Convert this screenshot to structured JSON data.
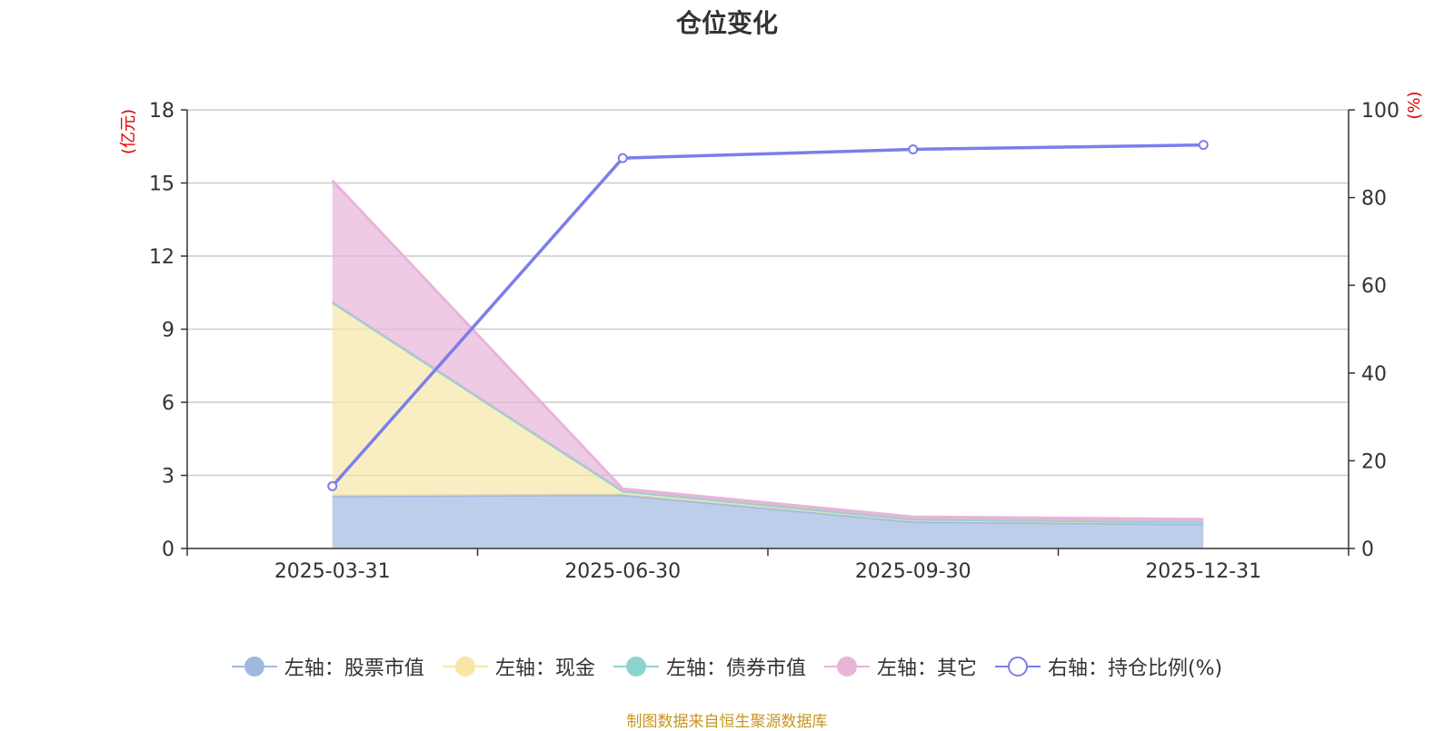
{
  "chart_data": {
    "type": "area",
    "title": "仓位变化",
    "categories": [
      "2025-03-31",
      "2025-06-30",
      "2025-09-30",
      "2025-12-31"
    ],
    "left_axis": {
      "unit_label": "(亿元)",
      "ticks": [
        "0",
        "3",
        "6",
        "9",
        "12",
        "15",
        "18"
      ],
      "ylim": [
        0,
        18
      ]
    },
    "right_axis": {
      "unit_label": "(%)",
      "ticks": [
        "0",
        "20",
        "40",
        "60",
        "80",
        "100"
      ],
      "ylim": [
        0,
        100
      ]
    },
    "stacked_series": [
      {
        "name": "左轴：股票市值",
        "values": [
          2.15,
          2.2,
          1.1,
          1.0
        ],
        "color": "#9fb9e0"
      },
      {
        "name": "左轴：现金",
        "values": [
          7.95,
          0.15,
          0.1,
          0.08
        ],
        "color": "#f7e7a6"
      },
      {
        "name": "左轴：债券市值",
        "values": [
          0,
          0,
          0,
          0
        ],
        "color": "#8fd3d0"
      },
      {
        "name": "左轴：其它",
        "values": [
          5.0,
          0.1,
          0.1,
          0.12
        ],
        "color": "#e8b4d8"
      }
    ],
    "line_series": {
      "name": "右轴：持仓比例(%)",
      "values": [
        14.2,
        89,
        91,
        92
      ],
      "color": "#7b7eea"
    },
    "grid": true,
    "legend_position": "bottom"
  },
  "source_note": "制图数据来自恒生聚源数据库"
}
